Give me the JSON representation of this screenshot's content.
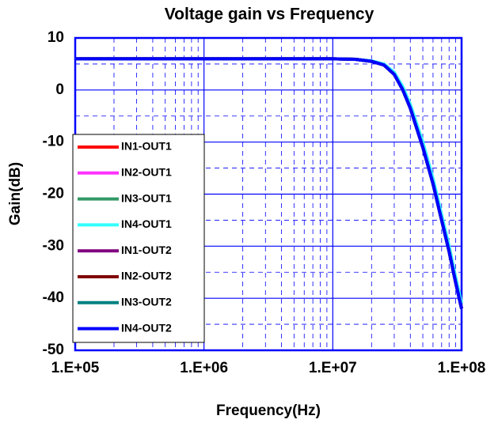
{
  "chart_data": {
    "type": "line",
    "title": "Voltage gain vs Frequency",
    "xlabel": "Frequency(Hz)",
    "ylabel": "Gain(dB)",
    "xscale": "log",
    "grid": true,
    "legend": "lower left",
    "x": [
      100000,
      1000000,
      10000000,
      15000000,
      20000000,
      25000000,
      30000000,
      35000000,
      40000000,
      50000000,
      60000000,
      70000000,
      80000000,
      90000000,
      100000000
    ],
    "xlim": [
      100000,
      100000000
    ],
    "xticks": [
      {
        "value": 100000,
        "label": "1.E+05"
      },
      {
        "value": 1000000,
        "label": "1.E+06"
      },
      {
        "value": 10000000,
        "label": "1.E+07"
      },
      {
        "value": 100000000,
        "label": "1.E+08"
      }
    ],
    "ylim": [
      -50,
      10
    ],
    "yticks": [
      10,
      0,
      -10,
      -20,
      -30,
      -40,
      -50
    ],
    "series": [
      {
        "name": "IN1-OUT1",
        "color": "#ff0000",
        "values": [
          6,
          6,
          6,
          5.9,
          5.5,
          4.8,
          3,
          0,
          -3.5,
          -11,
          -18,
          -25,
          -31,
          -37,
          -42
        ]
      },
      {
        "name": "IN2-OUT1",
        "color": "#ff33ff",
        "values": [
          6,
          6,
          6,
          5.9,
          5.5,
          4.8,
          3,
          0,
          -3.5,
          -11,
          -18,
          -25,
          -31,
          -37,
          -42
        ]
      },
      {
        "name": "IN3-OUT1",
        "color": "#339966",
        "values": [
          6,
          6,
          6,
          5.9,
          5.5,
          4.8,
          3,
          0,
          -3.5,
          -11,
          -18,
          -25,
          -31,
          -37,
          -42
        ]
      },
      {
        "name": "IN4-OUT1",
        "color": "#33ffff",
        "values": [
          6,
          6,
          6,
          5.9,
          5.6,
          5,
          3.4,
          0.6,
          -2.8,
          -10,
          -17,
          -24,
          -30,
          -36,
          -41
        ]
      },
      {
        "name": "IN1-OUT2",
        "color": "#800080",
        "values": [
          6,
          6,
          6,
          5.9,
          5.5,
          4.8,
          3,
          0,
          -3.5,
          -11,
          -18,
          -25,
          -31,
          -37,
          -42
        ]
      },
      {
        "name": "IN2-OUT2",
        "color": "#800000",
        "values": [
          6,
          6,
          6,
          5.9,
          5.5,
          4.8,
          3,
          0,
          -3.5,
          -11,
          -18,
          -25,
          -31,
          -37,
          -42
        ]
      },
      {
        "name": "IN3-OUT2",
        "color": "#008080",
        "values": [
          6,
          6,
          6,
          5.9,
          5.5,
          4.8,
          3,
          0,
          -3.5,
          -11,
          -18,
          -25,
          -31,
          -37,
          -42
        ]
      },
      {
        "name": "IN4-OUT2",
        "color": "#0000ff",
        "values": [
          6,
          6,
          6,
          5.9,
          5.5,
          4.8,
          3,
          0,
          -3.5,
          -11,
          -18,
          -25,
          -31,
          -37,
          -42
        ]
      }
    ]
  }
}
